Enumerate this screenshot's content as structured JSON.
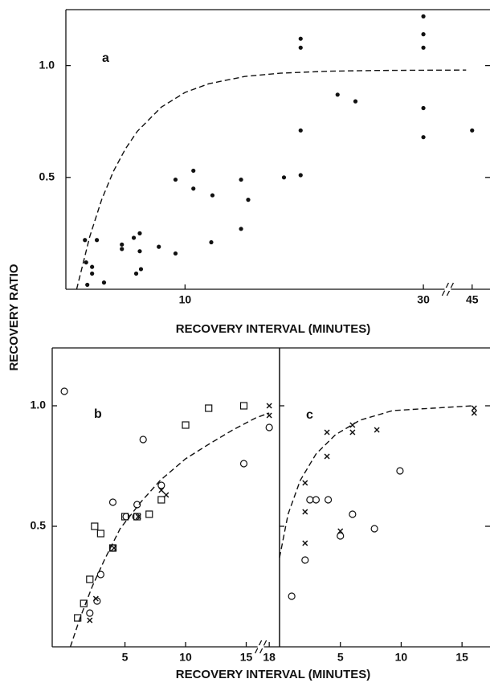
{
  "chart_data": [
    {
      "type": "scatter",
      "panel_label": "a",
      "xlabel": "RECOVERY INTERVAL (MINUTES)",
      "ylabel": "RECOVERY RATIO",
      "xlim": [
        0,
        46.5
      ],
      "xticks": [
        10,
        30,
        45
      ],
      "x_break": [
        31,
        44
      ],
      "ylim": [
        0,
        1.25
      ],
      "yticks": [
        {
          "value": 1,
          "label": "1.0"
        },
        0.5
      ],
      "series": [
        {
          "marker": "dot",
          "color": "#111111",
          "x": [
            1.6,
            1.7,
            1.8,
            2.2,
            2.2,
            2.6,
            3.2,
            4.7,
            4.7,
            5.7,
            6.2,
            6.2,
            5.9,
            6.3,
            7.8,
            9.2,
            9.2,
            10.7,
            10.7,
            12.3,
            12.2,
            14.7,
            14.7,
            15.3,
            18.3,
            19.7,
            19.7,
            19.7,
            19.7,
            22.8,
            24.3,
            30,
            30,
            30,
            30,
            30,
            45
          ],
          "values": [
            0.22,
            0.12,
            0.02,
            0.1,
            0.07,
            0.22,
            0.03,
            0.2,
            0.18,
            0.23,
            0.25,
            0.17,
            0.07,
            0.09,
            0.19,
            0.49,
            0.16,
            0.53,
            0.45,
            0.42,
            0.21,
            0.49,
            0.27,
            0.4,
            0.5,
            1.12,
            1.08,
            0.71,
            0.51,
            0.87,
            0.84,
            1.22,
            1.14,
            1.08,
            0.81,
            0.68,
            0.71
          ]
        },
        {
          "marker": "dashed-line",
          "color": "#111111",
          "x": [
            0.9,
            2,
            3,
            4,
            5,
            6,
            8,
            10,
            12,
            15,
            18,
            22,
            26,
            30,
            44.5
          ],
          "values": [
            0,
            0.235,
            0.4,
            0.528,
            0.628,
            0.706,
            0.814,
            0.88,
            0.919,
            0.951,
            0.966,
            0.975,
            0.978,
            0.979,
            0.98
          ]
        }
      ]
    },
    {
      "type": "scatter",
      "panel_label": "b",
      "xlabel": "RECOVERY INTERVAL (MINUTES)",
      "xlim": [
        -1,
        18.85
      ],
      "xticks": [
        5,
        10,
        15,
        18
      ],
      "x_break": [
        16,
        17.5
      ],
      "ylim": [
        0,
        1.24
      ],
      "yticks": [
        {
          "value": 1,
          "label": "1.0"
        },
        0.5
      ],
      "series": [
        {
          "marker": "circle",
          "color": "#111111",
          "x": [
            0,
            2.1,
            2.7,
            3.0,
            4.0,
            4.0,
            5.1,
            5.9,
            6.0,
            6.5,
            8.0,
            14.8,
            18
          ],
          "values": [
            1.06,
            0.14,
            0.19,
            0.3,
            0.6,
            0.41,
            0.54,
            0.54,
            0.59,
            0.86,
            0.67,
            0.76,
            0.91
          ]
        },
        {
          "marker": "square",
          "color": "#111111",
          "x": [
            1.1,
            1.6,
            2.1,
            2.5,
            3.0,
            4.0,
            5.0,
            6.0,
            7.0,
            8.0,
            10.0,
            11.9,
            14.8
          ],
          "values": [
            0.12,
            0.18,
            0.28,
            0.5,
            0.47,
            0.41,
            0.54,
            0.54,
            0.55,
            0.61,
            0.92,
            0.99,
            1.0
          ]
        },
        {
          "marker": "x",
          "color": "#111111",
          "x": [
            2.1,
            2.6,
            4.1,
            6.1,
            8.0,
            8.4,
            18,
            18
          ],
          "values": [
            0.11,
            0.2,
            0.41,
            0.54,
            0.65,
            0.63,
            1.0,
            0.96
          ]
        },
        {
          "marker": "dashed-line",
          "color": "#111111",
          "x": [
            0.5,
            1.3,
            2.3,
            3.3,
            4.6,
            6.3,
            7.9,
            10,
            11.9,
            13.9,
            15.8,
            18
          ],
          "values": [
            0,
            0.12,
            0.25,
            0.36,
            0.49,
            0.6,
            0.69,
            0.78,
            0.84,
            0.9,
            0.95,
            0.97
          ]
        }
      ]
    },
    {
      "type": "scatter",
      "panel_label": "c",
      "xlim": [
        0,
        17.3
      ],
      "xticks": [
        5,
        10,
        15
      ],
      "ylim": [
        0,
        1.24
      ],
      "yticks": [
        1,
        0.5
      ],
      "series": [
        {
          "marker": "circle",
          "color": "#111111",
          "x": [
            1.0,
            2.1,
            2.5,
            3.0,
            4.0,
            5.0,
            6.0,
            7.8,
            9.9
          ],
          "values": [
            0.21,
            0.36,
            0.61,
            0.61,
            0.61,
            0.46,
            0.55,
            0.49,
            0.73
          ]
        },
        {
          "marker": "x",
          "color": "#111111",
          "x": [
            2.1,
            2.1,
            2.1,
            3.9,
            3.9,
            5.0,
            6.0,
            6.0,
            8.0,
            16.0,
            16.0
          ],
          "values": [
            0.68,
            0.56,
            0.43,
            0.89,
            0.79,
            0.48,
            0.92,
            0.89,
            0.9,
            0.99,
            0.97
          ]
        },
        {
          "marker": "dashed-line",
          "color": "#111111",
          "x": [
            0,
            0.7,
            1.7,
            3.0,
            4.6,
            6.6,
            9.3,
            12.6,
            15.9
          ],
          "values": [
            0.37,
            0.55,
            0.69,
            0.8,
            0.88,
            0.94,
            0.98,
            0.99,
            1.0
          ]
        }
      ]
    }
  ]
}
